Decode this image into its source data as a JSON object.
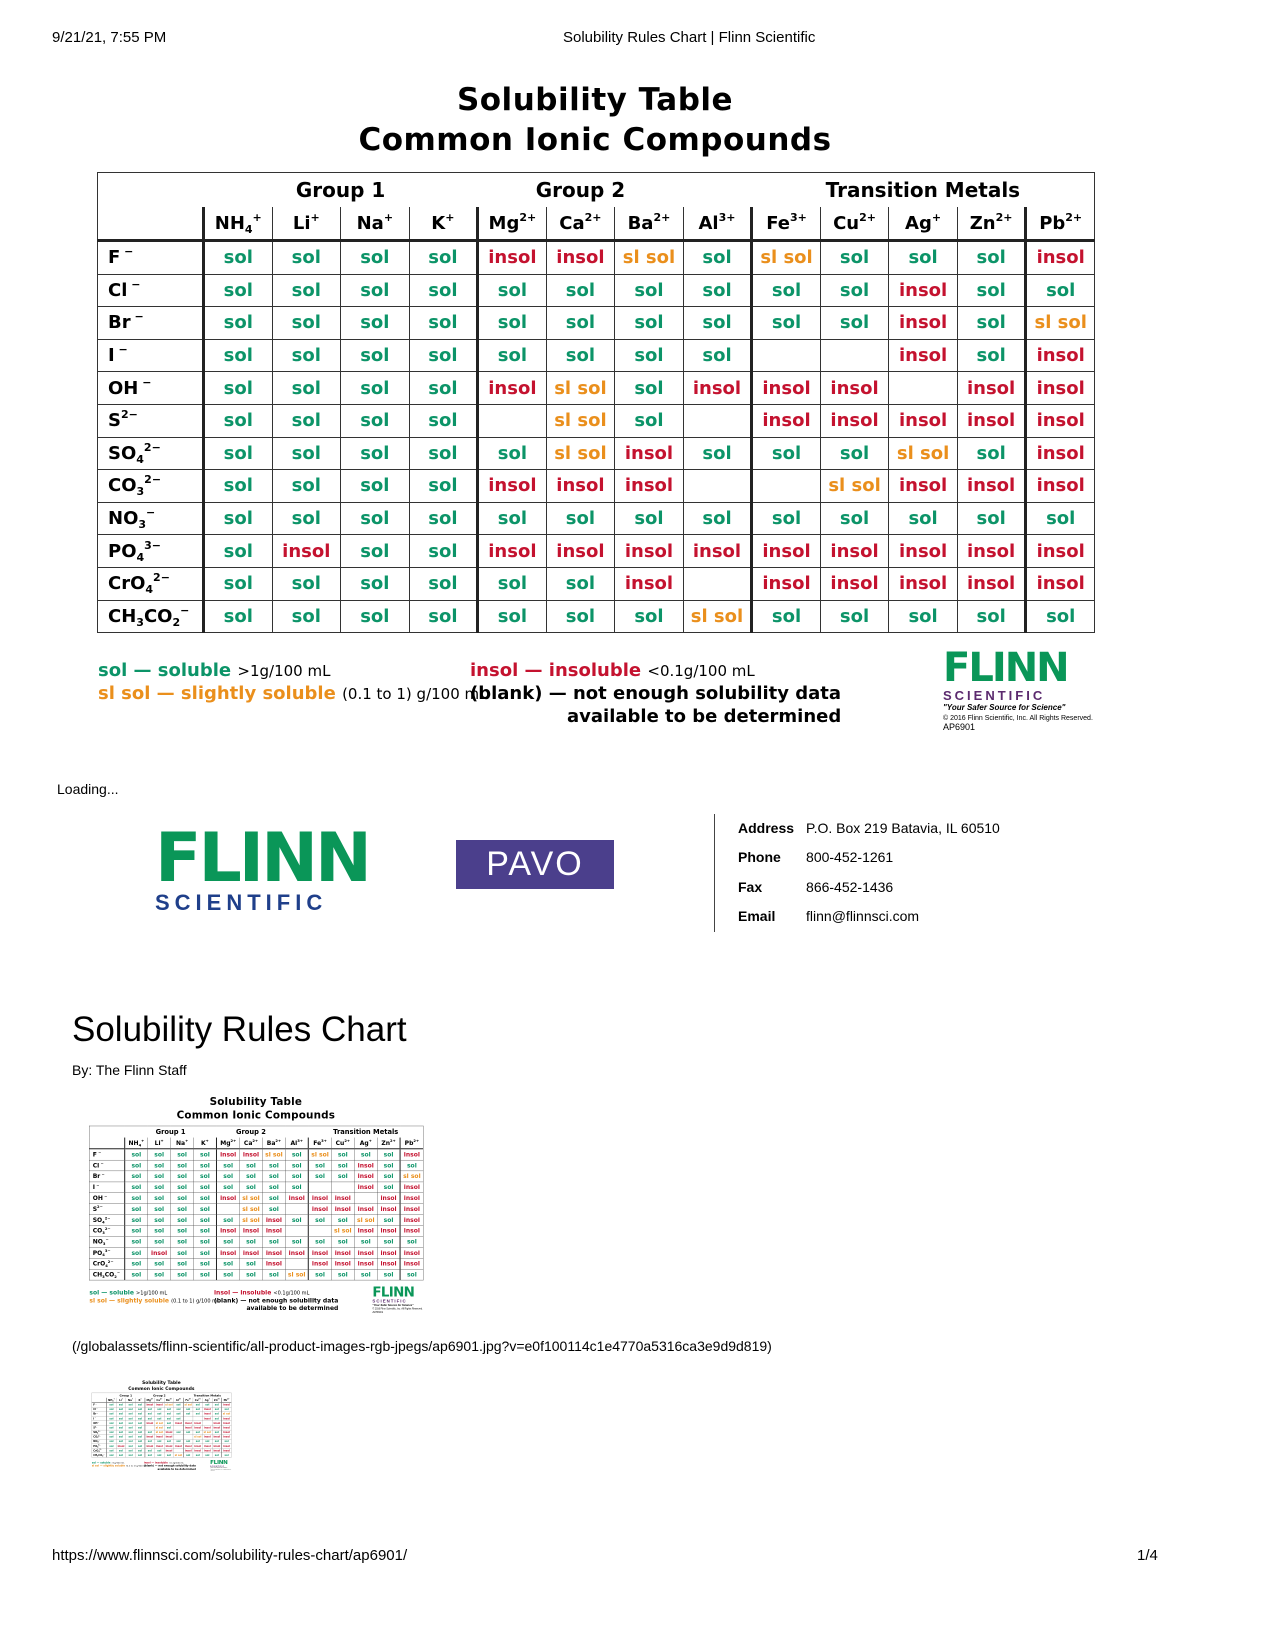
{
  "print_header": {
    "datetime": "9/21/21, 7:55 PM",
    "title": "Solubility Rules Chart | Flinn Scientific"
  },
  "poster": {
    "title_line1": "Solubility Table",
    "title_line2": "Common Ionic Compounds",
    "groups": [
      {
        "label": "Group 1",
        "span": 4
      },
      {
        "label": "Group 2",
        "span": 3
      },
      {
        "label": "",
        "span": 1
      },
      {
        "label": "Transition Metals",
        "span": 5
      }
    ],
    "cations": [
      {
        "base": "NH",
        "sub": "4",
        "sup": "+"
      },
      {
        "base": "Li",
        "sub": "",
        "sup": "+"
      },
      {
        "base": "Na",
        "sub": "",
        "sup": "+"
      },
      {
        "base": "K",
        "sub": "",
        "sup": "+"
      },
      {
        "base": "Mg",
        "sub": "",
        "sup": "2+"
      },
      {
        "base": "Ca",
        "sub": "",
        "sup": "2+"
      },
      {
        "base": "Ba",
        "sub": "",
        "sup": "2+"
      },
      {
        "base": "Al",
        "sub": "",
        "sup": "3+"
      },
      {
        "base": "Fe",
        "sub": "",
        "sup": "3+"
      },
      {
        "base": "Cu",
        "sub": "",
        "sup": "2+"
      },
      {
        "base": "Ag",
        "sub": "",
        "sup": "+"
      },
      {
        "base": "Zn",
        "sub": "",
        "sup": "2+"
      },
      {
        "base": "Pb",
        "sub": "",
        "sup": "2+"
      }
    ],
    "rows": [
      {
        "anion": [
          [
            "F",
            "",
            " −"
          ]
        ],
        "cells": [
          "sol",
          "sol",
          "sol",
          "sol",
          "insol",
          "insol",
          "sl sol",
          "sol",
          "sl sol",
          "sol",
          "sol",
          "sol",
          "insol"
        ]
      },
      {
        "anion": [
          [
            "Cl",
            "",
            " −"
          ]
        ],
        "cells": [
          "sol",
          "sol",
          "sol",
          "sol",
          "sol",
          "sol",
          "sol",
          "sol",
          "sol",
          "sol",
          "insol",
          "sol",
          "sol"
        ]
      },
      {
        "anion": [
          [
            "Br",
            "",
            " −"
          ]
        ],
        "cells": [
          "sol",
          "sol",
          "sol",
          "sol",
          "sol",
          "sol",
          "sol",
          "sol",
          "sol",
          "sol",
          "insol",
          "sol",
          "sl sol"
        ]
      },
      {
        "anion": [
          [
            "I",
            "",
            " −"
          ]
        ],
        "cells": [
          "sol",
          "sol",
          "sol",
          "sol",
          "sol",
          "sol",
          "sol",
          "sol",
          "",
          "",
          "insol",
          "sol",
          "insol"
        ]
      },
      {
        "anion": [
          [
            "OH",
            "",
            " −"
          ]
        ],
        "cells": [
          "sol",
          "sol",
          "sol",
          "sol",
          "insol",
          "sl sol",
          "sol",
          "insol",
          "insol",
          "insol",
          "",
          "insol",
          "insol"
        ]
      },
      {
        "anion": [
          [
            "S",
            "",
            "2−"
          ]
        ],
        "cells": [
          "sol",
          "sol",
          "sol",
          "sol",
          "",
          "sl sol",
          "sol",
          "",
          "insol",
          "insol",
          "insol",
          "insol",
          "insol"
        ]
      },
      {
        "anion": [
          [
            "SO",
            "4",
            "2−"
          ]
        ],
        "cells": [
          "sol",
          "sol",
          "sol",
          "sol",
          "sol",
          "sl sol",
          "insol",
          "sol",
          "sol",
          "sol",
          "sl sol",
          "sol",
          "insol"
        ]
      },
      {
        "anion": [
          [
            "CO",
            "3",
            "2−"
          ]
        ],
        "cells": [
          "sol",
          "sol",
          "sol",
          "sol",
          "insol",
          "insol",
          "insol",
          "",
          "",
          "sl sol",
          "insol",
          "insol",
          "insol"
        ]
      },
      {
        "anion": [
          [
            "NO",
            "3",
            "−"
          ]
        ],
        "cells": [
          "sol",
          "sol",
          "sol",
          "sol",
          "sol",
          "sol",
          "sol",
          "sol",
          "sol",
          "sol",
          "sol",
          "sol",
          "sol"
        ]
      },
      {
        "anion": [
          [
            "PO",
            "4",
            "3−"
          ]
        ],
        "cells": [
          "sol",
          "insol",
          "sol",
          "sol",
          "insol",
          "insol",
          "insol",
          "insol",
          "insol",
          "insol",
          "insol",
          "insol",
          "insol"
        ]
      },
      {
        "anion": [
          [
            "CrO",
            "4",
            "2−"
          ]
        ],
        "cells": [
          "sol",
          "sol",
          "sol",
          "sol",
          "sol",
          "sol",
          "insol",
          "",
          "insol",
          "insol",
          "insol",
          "insol",
          "insol"
        ]
      },
      {
        "anion": [
          [
            "CH",
            "3",
            ""
          ],
          [
            "CO",
            "2",
            "−"
          ]
        ],
        "cells": [
          "sol",
          "sol",
          "sol",
          "sol",
          "sol",
          "sol",
          "sol",
          "sl sol",
          "sol",
          "sol",
          "sol",
          "sol",
          "sol"
        ]
      }
    ],
    "legend": {
      "sol_key": "sol — soluble",
      "sol_range": ">1g/100 mL",
      "slsol_key": "sl sol — slightly soluble",
      "slsol_range": "(0.1 to 1) g/100 mL",
      "insol_key": "insol — insoluble",
      "insol_range": "<0.1g/100 mL",
      "blank_line1": "(blank) — not enough solubility data",
      "blank_line2": "available to be determined"
    },
    "logo": {
      "flinn": "FLINN",
      "scientific": "SCIENTIFIC",
      "tagline": "\"Your Safer Source for Science\"",
      "copyright": "© 2016 Flinn Scientific, Inc. All Rights Reserved.",
      "code": "AP6901"
    }
  },
  "loading": "Loading...",
  "footer_brand": {
    "flinn": "FLINN",
    "scientific": "SCIENTIFIC",
    "pavo": "PAVO"
  },
  "contact": [
    {
      "k": "Address",
      "v": "P.O. Box 219 Batavia, IL 60510"
    },
    {
      "k": "Phone",
      "v": "800-452-1261"
    },
    {
      "k": "Fax",
      "v": "866-452-1436"
    },
    {
      "k": "Email",
      "v": "flinn@flinnsci.com"
    }
  ],
  "article": {
    "title": "Solubility Rules Chart",
    "byline": "By: The Flinn Staff",
    "image_path": "(/globalassets/flinn-scientific/all-product-images-rgb-jpegs/ap6901.jpg?v=e0f100114c1e4770a5316ca3e9d9d819)"
  },
  "print_footer": {
    "url": "https://www.flinnsci.com/solubility-rules-chart/ap6901/",
    "page": "1/4"
  },
  "colors": {
    "sol": "#0c9468",
    "insol": "#c4122f",
    "sl_sol": "#ea8f1c",
    "flinn_green": "#0a9658",
    "pavo": "#4b3f8c"
  }
}
